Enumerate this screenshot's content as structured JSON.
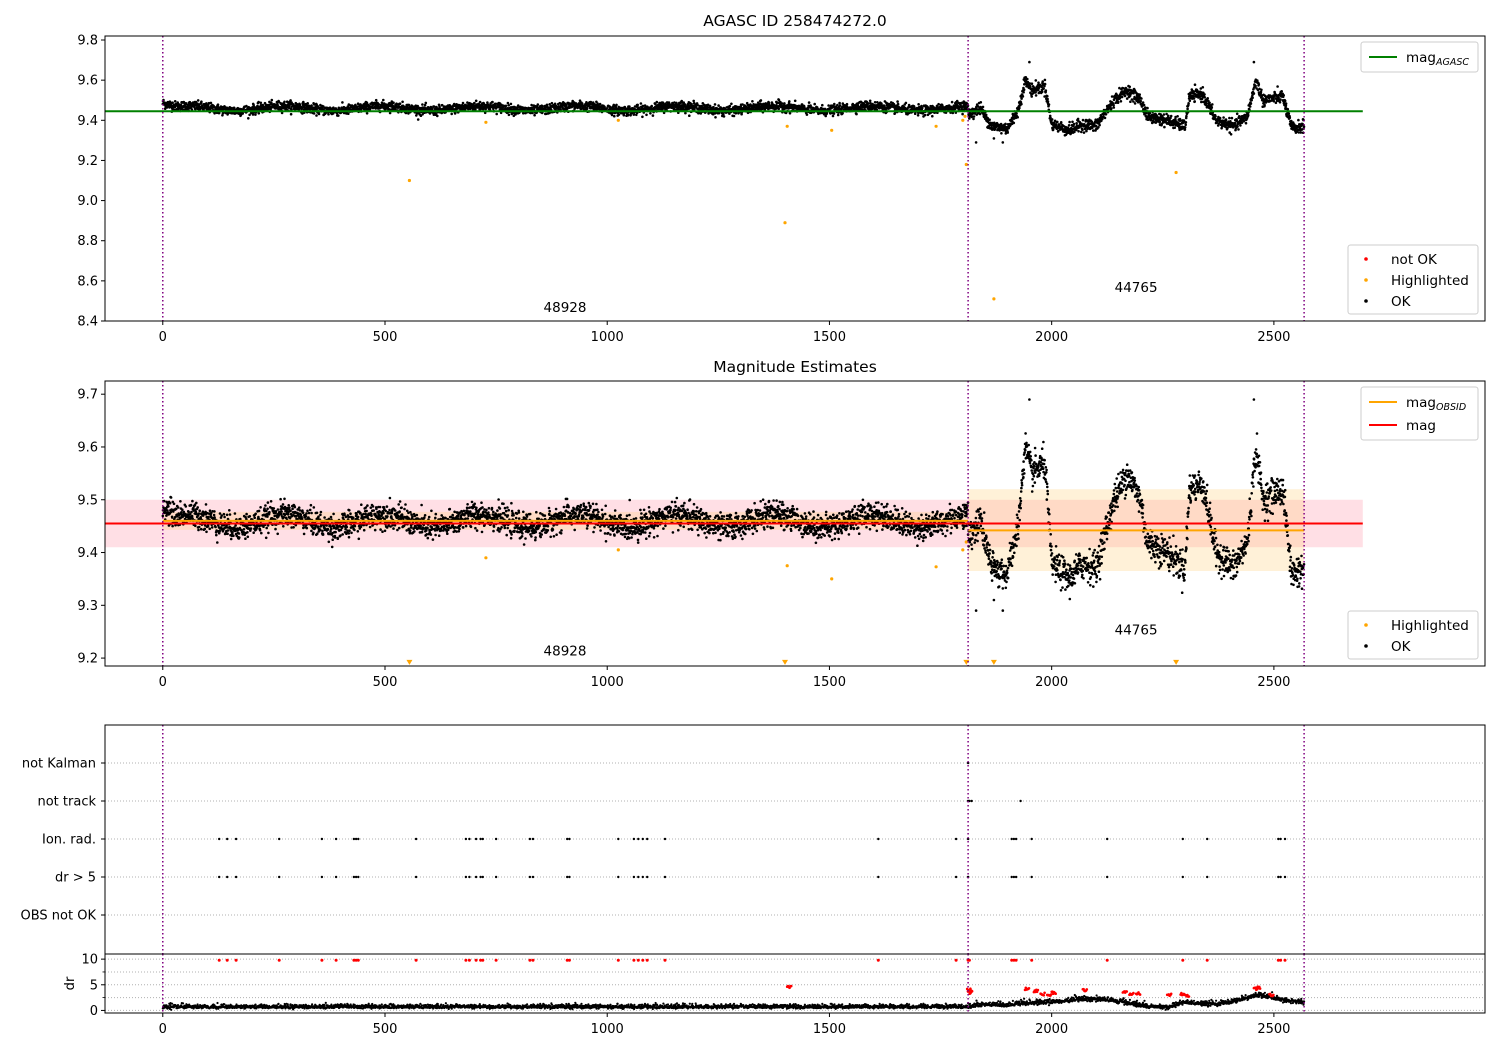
{
  "figure_title": "AGASC ID 258474272.0",
  "colors": {
    "agasc": "#008000",
    "obsid_mag": "#ffa500",
    "mag": "#ff0000",
    "ok": "#000000",
    "highlighted": "#ffa500",
    "not_ok": "#ff0000",
    "obs_line": "#800080",
    "band_total": "#ffc0cb",
    "band_obsid": "#ffe6b3"
  },
  "chart_data": [
    {
      "type": "scatter",
      "title": "AGASC ID 258474272.0",
      "xlim": [
        -130,
        2975
      ],
      "ylim": [
        8.4,
        9.82
      ],
      "xticks": [
        0,
        500,
        1000,
        1500,
        2000,
        2500
      ],
      "xtick_labels": [
        "0",
        "500",
        "1000",
        "1500",
        "2000",
        "2500"
      ],
      "yticks": [
        8.4,
        8.6,
        8.8,
        9.0,
        9.2,
        9.4,
        9.6,
        9.8
      ],
      "ytick_labels": [
        "8.4",
        "8.6",
        "8.8",
        "9.0",
        "9.2",
        "9.4",
        "9.6",
        "9.8"
      ],
      "obs_boundaries": [
        0,
        1812,
        2568
      ],
      "obs_labels": [
        {
          "text": "48928",
          "x": 905,
          "y": 8.445
        },
        {
          "text": "44765",
          "x": 2190,
          "y": 8.545
        }
      ],
      "hlines": [
        {
          "name": "mag_AGASC",
          "y": 9.445,
          "xmin": -130,
          "xmax": 2700,
          "color": "#008000"
        }
      ],
      "series": [
        {
          "name": "OK",
          "color": "#000000",
          "segments": [
            {
              "xstart": 0,
              "xend": 1812,
              "mean": 9.46,
              "noise": 0.012,
              "wiggle_amp": 0.012,
              "wiggle_period": 220,
              "start_offset": 0.025
            },
            {
              "xstart": 1812,
              "xend": 2568,
              "knots": [
                [
                  1812,
                  9.43
                ],
                [
                  1840,
                  9.46
                ],
                [
                  1865,
                  9.37
                ],
                [
                  1900,
                  9.36
                ],
                [
                  1925,
                  9.45
                ],
                [
                  1940,
                  9.6
                ],
                [
                  1955,
                  9.55
                ],
                [
                  1985,
                  9.57
                ],
                [
                  2000,
                  9.38
                ],
                [
                  2040,
                  9.35
                ],
                [
                  2070,
                  9.38
                ],
                [
                  2100,
                  9.37
                ],
                [
                  2140,
                  9.5
                ],
                [
                  2170,
                  9.55
                ],
                [
                  2200,
                  9.5
                ],
                [
                  2215,
                  9.42
                ],
                [
                  2260,
                  9.4
                ],
                [
                  2300,
                  9.37
                ],
                [
                  2310,
                  9.52
                ],
                [
                  2340,
                  9.53
                ],
                [
                  2370,
                  9.4
                ],
                [
                  2410,
                  9.37
                ],
                [
                  2440,
                  9.42
                ],
                [
                  2460,
                  9.6
                ],
                [
                  2475,
                  9.5
                ],
                [
                  2520,
                  9.52
                ],
                [
                  2540,
                  9.36
                ],
                [
                  2568,
                  9.37
                ]
              ],
              "noise": 0.015
            }
          ],
          "extra_points": [
            [
              1830,
              9.29
            ],
            [
              1870,
              9.31
            ],
            [
              1890,
              9.29
            ],
            [
              1950,
              9.69
            ],
            [
              2455,
              9.69
            ]
          ]
        },
        {
          "name": "Highlighted",
          "color": "#ffa500",
          "points": [
            [
              555,
              9.1
            ],
            [
              727,
              9.39
            ],
            [
              1025,
              9.4
            ],
            [
              1400,
              8.89
            ],
            [
              1405,
              9.37
            ],
            [
              1505,
              9.35
            ],
            [
              1740,
              9.37
            ],
            [
              1800,
              9.4
            ],
            [
              1805,
              9.42
            ],
            [
              1808,
              9.18
            ],
            [
              1870,
              8.51
            ],
            [
              2280,
              9.14
            ]
          ]
        }
      ],
      "legend_top": [
        {
          "label": "mag",
          "sub": "AGASC",
          "color": "#008000",
          "kind": "line"
        }
      ],
      "legend_bottom": [
        {
          "label": "not OK",
          "color": "#ff0000",
          "kind": "dot"
        },
        {
          "label": "Highlighted",
          "color": "#ffa500",
          "kind": "dot"
        },
        {
          "label": "OK",
          "color": "#000000",
          "kind": "dot"
        }
      ]
    },
    {
      "type": "scatter",
      "title": "Magnitude Estimates",
      "xlim": [
        -130,
        2975
      ],
      "ylim": [
        9.185,
        9.725
      ],
      "xticks": [
        0,
        500,
        1000,
        1500,
        2000,
        2500
      ],
      "xtick_labels": [
        "0",
        "500",
        "1000",
        "1500",
        "2000",
        "2500"
      ],
      "yticks": [
        9.2,
        9.3,
        9.4,
        9.5,
        9.6,
        9.7
      ],
      "ytick_labels": [
        "9.2",
        "9.3",
        "9.4",
        "9.5",
        "9.6",
        "9.7"
      ],
      "obs_boundaries": [
        0,
        1812,
        2568
      ],
      "obs_labels": [
        {
          "text": "48928",
          "x": 905,
          "y": 9.205
        },
        {
          "text": "44765",
          "x": 2190,
          "y": 9.245
        }
      ],
      "bands": [
        {
          "xmin": -130,
          "xmax": 2700,
          "ymin": 9.41,
          "ymax": 9.5,
          "color": "#ffc0cb",
          "opacity": 0.5
        },
        {
          "xmin": 0,
          "xmax": 1812,
          "ymin": 9.443,
          "ymax": 9.477,
          "color": "#ffd27f",
          "opacity": 0.3
        },
        {
          "xmin": 1812,
          "xmax": 2568,
          "ymin": 9.365,
          "ymax": 9.52,
          "color": "#ffd27f",
          "opacity": 0.3
        }
      ],
      "hlines": [
        {
          "name": "mag",
          "y": 9.455,
          "xmin": -130,
          "xmax": 2700,
          "color": "#ff0000"
        },
        {
          "name": "mag_OBSID_1",
          "y": 9.46,
          "xmin": 0,
          "xmax": 1812,
          "color": "#ffa500"
        },
        {
          "name": "mag_OBSID_2",
          "y": 9.442,
          "xmin": 1812,
          "xmax": 2568,
          "color": "#ffa500"
        }
      ],
      "series": [
        {
          "name": "OK",
          "color": "#000000",
          "segments": [
            {
              "xstart": 0,
              "xend": 1812,
              "mean": 9.46,
              "noise": 0.012,
              "wiggle_amp": 0.012,
              "wiggle_period": 220,
              "start_offset": 0.025
            },
            {
              "xstart": 1812,
              "xend": 2568,
              "knots": [
                [
                  1812,
                  9.43
                ],
                [
                  1840,
                  9.46
                ],
                [
                  1865,
                  9.37
                ],
                [
                  1900,
                  9.36
                ],
                [
                  1925,
                  9.45
                ],
                [
                  1940,
                  9.6
                ],
                [
                  1955,
                  9.55
                ],
                [
                  1985,
                  9.57
                ],
                [
                  2000,
                  9.38
                ],
                [
                  2040,
                  9.35
                ],
                [
                  2070,
                  9.38
                ],
                [
                  2100,
                  9.37
                ],
                [
                  2140,
                  9.5
                ],
                [
                  2170,
                  9.55
                ],
                [
                  2200,
                  9.5
                ],
                [
                  2215,
                  9.42
                ],
                [
                  2260,
                  9.4
                ],
                [
                  2300,
                  9.37
                ],
                [
                  2310,
                  9.52
                ],
                [
                  2340,
                  9.53
                ],
                [
                  2370,
                  9.4
                ],
                [
                  2410,
                  9.37
                ],
                [
                  2440,
                  9.42
                ],
                [
                  2460,
                  9.6
                ],
                [
                  2475,
                  9.5
                ],
                [
                  2520,
                  9.52
                ],
                [
                  2540,
                  9.36
                ],
                [
                  2568,
                  9.37
                ]
              ],
              "noise": 0.015
            }
          ],
          "extra_points": [
            [
              1830,
              9.29
            ],
            [
              1870,
              9.31
            ],
            [
              1890,
              9.29
            ],
            [
              1950,
              9.69
            ],
            [
              2455,
              9.69
            ]
          ]
        },
        {
          "name": "Highlighted",
          "color": "#ffa500",
          "points": [
            [
              727,
              9.39
            ],
            [
              1025,
              9.405
            ],
            [
              1405,
              9.375
            ],
            [
              1505,
              9.35
            ],
            [
              1740,
              9.373
            ],
            [
              1800,
              9.405
            ],
            [
              1808,
              9.42
            ]
          ]
        },
        {
          "name": "Highlighted (out of range)",
          "color": "#ffa500",
          "marker": "triangle-down",
          "points": [
            [
              555,
              9.191
            ],
            [
              1400,
              9.191
            ],
            [
              1808,
              9.191
            ],
            [
              1870,
              9.191
            ],
            [
              2280,
              9.191
            ]
          ]
        }
      ],
      "legend_top": [
        {
          "label": "mag",
          "sub": "OBSID",
          "color": "#ffa500",
          "kind": "line"
        },
        {
          "label": "mag",
          "sub": "",
          "color": "#ff0000",
          "kind": "line"
        }
      ],
      "legend_bottom": [
        {
          "label": "Highlighted",
          "color": "#ffa500",
          "kind": "dot"
        },
        {
          "label": "OK",
          "color": "#000000",
          "kind": "dot"
        }
      ]
    },
    {
      "type": "scatter",
      "title": "",
      "xlim": [
        -130,
        2975
      ],
      "categories": [
        "not Kalman",
        "not track",
        "Ion. rad.",
        "dr > 5",
        "OBS not OK"
      ],
      "obs_boundaries": [
        0,
        1812,
        2568
      ],
      "flags": {
        "not Kalman": [
          1812
        ],
        "not track": [
          1812,
          1815,
          1820,
          1930
        ],
        "Ion. rad.": [
          127,
          145,
          165,
          262,
          358,
          390,
          430,
          435,
          440,
          570,
          682,
          690,
          705,
          715,
          720,
          750,
          826,
          833,
          910,
          915,
          1025,
          1060,
          1070,
          1080,
          1090,
          1130,
          1610,
          1785,
          1812,
          1910,
          1915,
          1920,
          1955,
          2125,
          2295,
          2350,
          2510,
          2515,
          2525
        ],
        "dr > 5": [
          127,
          145,
          165,
          262,
          358,
          390,
          430,
          435,
          440,
          570,
          682,
          690,
          705,
          715,
          720,
          750,
          826,
          833,
          910,
          915,
          1025,
          1060,
          1070,
          1080,
          1090,
          1130,
          1610,
          1785,
          1812,
          1910,
          1915,
          1920,
          1955,
          2125,
          2295,
          2350,
          2510,
          2515,
          2525
        ],
        "OBS not OK": []
      }
    },
    {
      "type": "scatter",
      "title": "",
      "ylabel": "dr",
      "xlim": [
        -130,
        2975
      ],
      "ylim": [
        -0.5,
        11
      ],
      "xticks": [
        0,
        500,
        1000,
        1500,
        2000,
        2500
      ],
      "xtick_labels": [
        "0",
        "500",
        "1000",
        "1500",
        "2000",
        "2500"
      ],
      "yticks": [
        0,
        5,
        10
      ],
      "ytick_labels": [
        "0",
        "5",
        "10"
      ],
      "obs_boundaries": [
        0,
        1812,
        2568
      ],
      "series": [
        {
          "name": "OK",
          "color": "#000000",
          "segments": [
            {
              "xstart": 0,
              "xend": 1812,
              "mean": 0.7,
              "noise": 0.25
            },
            {
              "xstart": 1812,
              "xend": 2568,
              "knots": [
                [
                  1812,
                  0.8
                ],
                [
                  1850,
                  1.2
                ],
                [
                  1900,
                  1.0
                ],
                [
                  1950,
                  1.5
                ],
                [
                  2000,
                  1.6
                ],
                [
                  2050,
                  2.0
                ],
                [
                  2100,
                  2.2
                ],
                [
                  2150,
                  1.8
                ],
                [
                  2200,
                  0.9
                ],
                [
                  2260,
                  0.6
                ],
                [
                  2300,
                  1.6
                ],
                [
                  2350,
                  1.2
                ],
                [
                  2400,
                  1.6
                ],
                [
                  2440,
                  2.5
                ],
                [
                  2470,
                  3.0
                ],
                [
                  2520,
                  2.0
                ],
                [
                  2568,
                  1.5
                ]
              ],
              "noise": 0.3
            }
          ]
        },
        {
          "name": "not OK",
          "color": "#ff0000",
          "points_at_ceiling": [
            127,
            145,
            165,
            262,
            358,
            390,
            430,
            435,
            440,
            570,
            682,
            690,
            705,
            715,
            720,
            750,
            826,
            833,
            910,
            915,
            1025,
            1060,
            1070,
            1080,
            1090,
            1130,
            1610,
            1785,
            1812,
            1815,
            1910,
            1915,
            1920,
            1955,
            2125,
            2295,
            2350,
            2510,
            2515,
            2525
          ],
          "points": [
            [
              1405,
              4.5
            ],
            [
              1810,
              4.0
            ],
            [
              1812,
              3.5
            ],
            [
              1940,
              4.2
            ],
            [
              1960,
              3.8
            ],
            [
              1975,
              3.2
            ],
            [
              1990,
              3.0
            ],
            [
              2000,
              3.5
            ],
            [
              2070,
              4.0
            ],
            [
              2160,
              3.5
            ],
            [
              2175,
              3.2
            ],
            [
              2190,
              3.3
            ],
            [
              2260,
              3.0
            ],
            [
              2290,
              3.2
            ],
            [
              2300,
              2.8
            ],
            [
              2455,
              4.2
            ],
            [
              2460,
              4.5
            ],
            [
              2490,
              3.0
            ]
          ]
        }
      ]
    }
  ]
}
